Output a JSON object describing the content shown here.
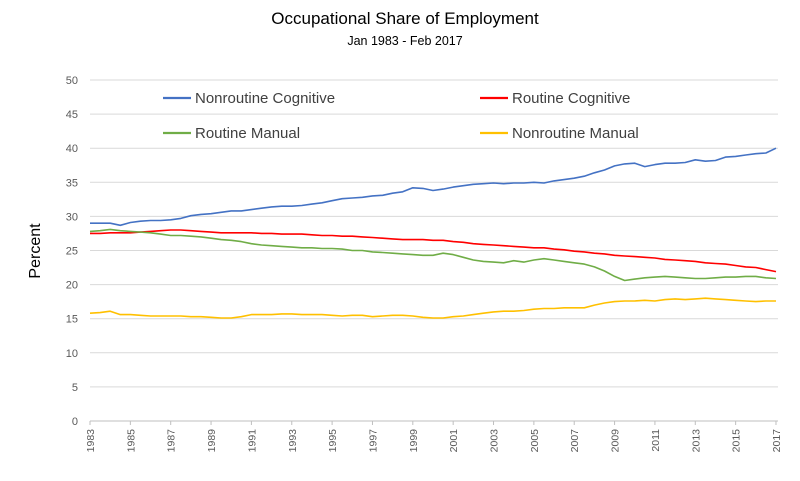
{
  "chart_data": {
    "type": "line",
    "title": "Occupational Share of Employment",
    "subtitle": "Jan 1983 - Feb 2017",
    "xlabel": "",
    "ylabel": "Percent",
    "xlim": [
      1983,
      2017.1
    ],
    "ylim": [
      0,
      50
    ],
    "yticks": [
      "0",
      "5",
      "10",
      "15",
      "20",
      "25",
      "30",
      "35",
      "40",
      "45",
      "50"
    ],
    "xticks": [
      "1983",
      "1985",
      "1987",
      "1989",
      "1991",
      "1993",
      "1995",
      "1997",
      "1999",
      "2001",
      "2003",
      "2005",
      "2007",
      "2009",
      "2011",
      "2013",
      "2015",
      "2017"
    ],
    "grid": true,
    "legend": "top-inside-two-columns",
    "series": [
      {
        "name": "Nonroutine Cognitive",
        "color": "#4472c4",
        "x": [
          1983,
          1983.5,
          1984,
          1984.5,
          1985,
          1985.5,
          1986,
          1986.5,
          1987,
          1987.5,
          1988,
          1988.5,
          1989,
          1989.5,
          1990,
          1990.5,
          1991,
          1991.5,
          1992,
          1992.5,
          1993,
          1993.5,
          1994,
          1994.5,
          1995,
          1995.5,
          1996,
          1996.5,
          1997,
          1997.5,
          1998,
          1998.5,
          1999,
          1999.5,
          2000,
          2000.5,
          2001,
          2001.5,
          2002,
          2002.5,
          2003,
          2003.5,
          2004,
          2004.5,
          2005,
          2005.5,
          2006,
          2006.5,
          2007,
          2007.5,
          2008,
          2008.5,
          2009,
          2009.5,
          2010,
          2010.5,
          2011,
          2011.5,
          2012,
          2012.5,
          2013,
          2013.5,
          2014,
          2014.5,
          2015,
          2015.5,
          2016,
          2016.5,
          2017
        ],
        "y": [
          29.0,
          29.0,
          29.0,
          28.7,
          29.1,
          29.3,
          29.4,
          29.4,
          29.5,
          29.7,
          30.1,
          30.3,
          30.4,
          30.6,
          30.8,
          30.8,
          31.0,
          31.2,
          31.4,
          31.5,
          31.5,
          31.6,
          31.8,
          32.0,
          32.3,
          32.6,
          32.7,
          32.8,
          33.0,
          33.1,
          33.4,
          33.6,
          34.2,
          34.1,
          33.8,
          34.0,
          34.3,
          34.5,
          34.7,
          34.8,
          34.9,
          34.8,
          34.9,
          34.9,
          35.0,
          34.9,
          35.2,
          35.4,
          35.6,
          35.9,
          36.4,
          36.8,
          37.4,
          37.7,
          37.8,
          37.3,
          37.6,
          37.8,
          37.8,
          37.9,
          38.3,
          38.1,
          38.2,
          38.7,
          38.8,
          39.0,
          39.2,
          39.3,
          40.0
        ]
      },
      {
        "name": "Routine Cognitive",
        "color": "#ff0000",
        "x": [
          1983,
          1983.5,
          1984,
          1984.5,
          1985,
          1985.5,
          1986,
          1986.5,
          1987,
          1987.5,
          1988,
          1988.5,
          1989,
          1989.5,
          1990,
          1990.5,
          1991,
          1991.5,
          1992,
          1992.5,
          1993,
          1993.5,
          1994,
          1994.5,
          1995,
          1995.5,
          1996,
          1996.5,
          1997,
          1997.5,
          1998,
          1998.5,
          1999,
          1999.5,
          2000,
          2000.5,
          2001,
          2001.5,
          2002,
          2002.5,
          2003,
          2003.5,
          2004,
          2004.5,
          2005,
          2005.5,
          2006,
          2006.5,
          2007,
          2007.5,
          2008,
          2008.5,
          2009,
          2009.5,
          2010,
          2010.5,
          2011,
          2011.5,
          2012,
          2012.5,
          2013,
          2013.5,
          2014,
          2014.5,
          2015,
          2015.5,
          2016,
          2016.5,
          2017
        ],
        "y": [
          27.5,
          27.5,
          27.6,
          27.6,
          27.6,
          27.7,
          27.8,
          27.9,
          28.0,
          28.0,
          27.9,
          27.8,
          27.7,
          27.6,
          27.6,
          27.6,
          27.6,
          27.5,
          27.5,
          27.4,
          27.4,
          27.4,
          27.3,
          27.2,
          27.2,
          27.1,
          27.1,
          27.0,
          26.9,
          26.8,
          26.7,
          26.6,
          26.6,
          26.6,
          26.5,
          26.5,
          26.3,
          26.2,
          26.0,
          25.9,
          25.8,
          25.7,
          25.6,
          25.5,
          25.4,
          25.4,
          25.2,
          25.1,
          24.9,
          24.8,
          24.6,
          24.5,
          24.3,
          24.2,
          24.1,
          24.0,
          23.9,
          23.7,
          23.6,
          23.5,
          23.4,
          23.2,
          23.1,
          23.0,
          22.8,
          22.6,
          22.5,
          22.2,
          21.9
        ]
      },
      {
        "name": "Routine Manual",
        "color": "#70ad47",
        "x": [
          1983,
          1983.5,
          1984,
          1984.5,
          1985,
          1985.5,
          1986,
          1986.5,
          1987,
          1987.5,
          1988,
          1988.5,
          1989,
          1989.5,
          1990,
          1990.5,
          1991,
          1991.5,
          1992,
          1992.5,
          1993,
          1993.5,
          1994,
          1994.5,
          1995,
          1995.5,
          1996,
          1996.5,
          1997,
          1997.5,
          1998,
          1998.5,
          1999,
          1999.5,
          2000,
          2000.5,
          2001,
          2001.5,
          2002,
          2002.5,
          2003,
          2003.5,
          2004,
          2004.5,
          2005,
          2005.5,
          2006,
          2006.5,
          2007,
          2007.5,
          2008,
          2008.5,
          2009,
          2009.5,
          2010,
          2010.5,
          2011,
          2011.5,
          2012,
          2012.5,
          2013,
          2013.5,
          2014,
          2014.5,
          2015,
          2015.5,
          2016,
          2016.5,
          2017
        ],
        "y": [
          27.8,
          27.9,
          28.1,
          27.9,
          27.8,
          27.7,
          27.6,
          27.4,
          27.2,
          27.2,
          27.1,
          27.0,
          26.8,
          26.6,
          26.5,
          26.3,
          26.0,
          25.8,
          25.7,
          25.6,
          25.5,
          25.4,
          25.4,
          25.3,
          25.3,
          25.2,
          25.0,
          25.0,
          24.8,
          24.7,
          24.6,
          24.5,
          24.4,
          24.3,
          24.3,
          24.6,
          24.4,
          24.0,
          23.6,
          23.4,
          23.3,
          23.2,
          23.5,
          23.3,
          23.6,
          23.8,
          23.6,
          23.4,
          23.2,
          23.0,
          22.6,
          22.0,
          21.2,
          20.6,
          20.8,
          21.0,
          21.1,
          21.2,
          21.1,
          21.0,
          20.9,
          20.9,
          21.0,
          21.1,
          21.1,
          21.2,
          21.2,
          21.0,
          20.9
        ]
      },
      {
        "name": "Nonroutine Manual",
        "color": "#ffc000",
        "x": [
          1983,
          1983.5,
          1984,
          1984.5,
          1985,
          1985.5,
          1986,
          1986.5,
          1987,
          1987.5,
          1988,
          1988.5,
          1989,
          1989.5,
          1990,
          1990.5,
          1991,
          1991.5,
          1992,
          1992.5,
          1993,
          1993.5,
          1994,
          1994.5,
          1995,
          1995.5,
          1996,
          1996.5,
          1997,
          1997.5,
          1998,
          1998.5,
          1999,
          1999.5,
          2000,
          2000.5,
          2001,
          2001.5,
          2002,
          2002.5,
          2003,
          2003.5,
          2004,
          2004.5,
          2005,
          2005.5,
          2006,
          2006.5,
          2007,
          2007.5,
          2008,
          2008.5,
          2009,
          2009.5,
          2010,
          2010.5,
          2011,
          2011.5,
          2012,
          2012.5,
          2013,
          2013.5,
          2014,
          2014.5,
          2015,
          2015.5,
          2016,
          2016.5,
          2017
        ],
        "y": [
          15.8,
          15.9,
          16.1,
          15.6,
          15.6,
          15.5,
          15.4,
          15.4,
          15.4,
          15.4,
          15.3,
          15.3,
          15.2,
          15.1,
          15.1,
          15.3,
          15.6,
          15.6,
          15.6,
          15.7,
          15.7,
          15.6,
          15.6,
          15.6,
          15.5,
          15.4,
          15.5,
          15.5,
          15.3,
          15.4,
          15.5,
          15.5,
          15.4,
          15.2,
          15.1,
          15.1,
          15.3,
          15.4,
          15.6,
          15.8,
          16.0,
          16.1,
          16.1,
          16.2,
          16.4,
          16.5,
          16.5,
          16.6,
          16.6,
          16.6,
          17.0,
          17.3,
          17.5,
          17.6,
          17.6,
          17.7,
          17.6,
          17.8,
          17.9,
          17.8,
          17.9,
          18.0,
          17.9,
          17.8,
          17.7,
          17.6,
          17.5,
          17.6,
          17.6
        ]
      }
    ]
  }
}
